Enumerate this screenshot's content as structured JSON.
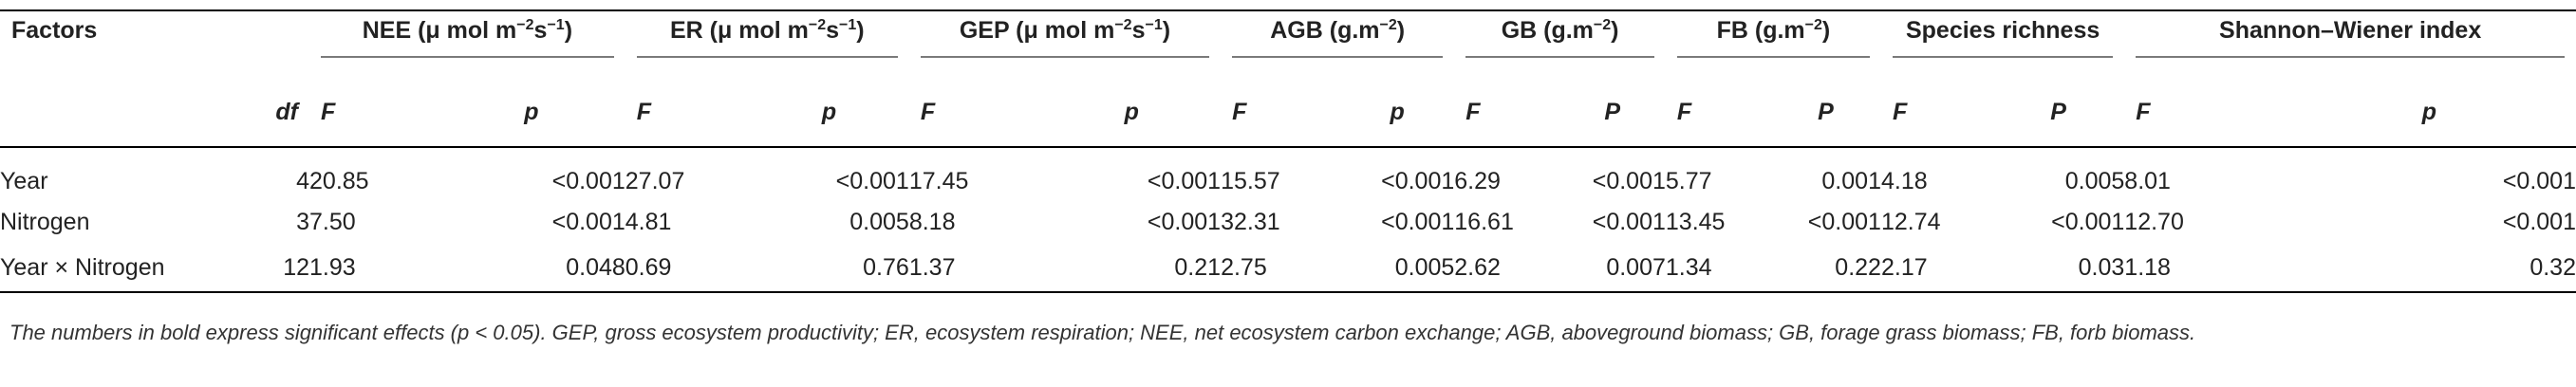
{
  "table": {
    "header_group_row": {
      "factors": "Factors",
      "groups": [
        {
          "label": "NEE (μ mol m",
          "sup1": "−2",
          "mid": "s",
          "sup2": "−1",
          "end": ")"
        },
        {
          "label": "ER (μ mol m",
          "sup1": "−2",
          "mid": "s",
          "sup2": "−1",
          "end": ")"
        },
        {
          "label": "GEP (μ mol m",
          "sup1": "−2",
          "mid": "s",
          "sup2": "−1",
          "end": ")"
        },
        {
          "label": "AGB (g.m",
          "sup1": "−2",
          "mid": "",
          "sup2": "",
          "end": ")"
        },
        {
          "label": "GB (g.m",
          "sup1": "−2",
          "mid": "",
          "sup2": "",
          "end": ")"
        },
        {
          "label": "FB (g.m",
          "sup1": "−2",
          "mid": "",
          "sup2": "",
          "end": ")"
        },
        {
          "label": "Species richness",
          "sup1": "",
          "mid": "",
          "sup2": "",
          "end": ""
        },
        {
          "label": "Shannon–Wiener index",
          "sup1": "",
          "mid": "",
          "sup2": "",
          "end": ""
        }
      ]
    },
    "header_sub_row": {
      "df": "df",
      "cols": [
        "F",
        "p",
        "F",
        "p",
        "F",
        "p",
        "F",
        "p",
        "F",
        "P",
        "F",
        "P",
        "F",
        "P",
        "F",
        "p"
      ]
    },
    "rows": [
      {
        "factor": "Year",
        "df": "4",
        "cells": [
          {
            "v": "20.85",
            "b": false
          },
          {
            "v": "<0.001",
            "b": true
          },
          {
            "v": "27.07",
            "b": false
          },
          {
            "v": "<0.001",
            "b": true
          },
          {
            "v": "17.45",
            "b": false
          },
          {
            "v": "<0.001",
            "b": true
          },
          {
            "v": "15.57",
            "b": false
          },
          {
            "v": "<0.001",
            "b": true
          },
          {
            "v": "6.29",
            "b": false
          },
          {
            "v": "<0.001",
            "b": true
          },
          {
            "v": "5.77",
            "b": false
          },
          {
            "v": "0.001",
            "b": true
          },
          {
            "v": "4.18",
            "b": false
          },
          {
            "v": "0.005",
            "b": true
          },
          {
            "v": "8.01",
            "b": false
          },
          {
            "v": "<0.001",
            "b": true
          }
        ]
      },
      {
        "factor": "Nitrogen",
        "df": "3",
        "cells": [
          {
            "v": "7.50",
            "b": false
          },
          {
            "v": "<0.001",
            "b": true
          },
          {
            "v": "4.81",
            "b": false
          },
          {
            "v": "0.005",
            "b": true
          },
          {
            "v": "8.18",
            "b": false
          },
          {
            "v": "<0.001",
            "b": true
          },
          {
            "v": "32.31",
            "b": false
          },
          {
            "v": "<0.001",
            "b": true
          },
          {
            "v": "16.61",
            "b": false
          },
          {
            "v": "<0.001",
            "b": true
          },
          {
            "v": "13.45",
            "b": false
          },
          {
            "v": "<0.001",
            "b": true
          },
          {
            "v": "12.74",
            "b": false
          },
          {
            "v": "<0.001",
            "b": true
          },
          {
            "v": "12.70",
            "b": false
          },
          {
            "v": "<0.001",
            "b": true
          }
        ]
      },
      {
        "factor": "Year × Nitrogen",
        "df": "12",
        "cells": [
          {
            "v": "1.93",
            "b": false
          },
          {
            "v": "0.048",
            "b": true
          },
          {
            "v": "0.69",
            "b": false
          },
          {
            "v": "0.76",
            "b": false
          },
          {
            "v": "1.37",
            "b": false
          },
          {
            "v": "0.21",
            "b": false
          },
          {
            "v": "2.75",
            "b": false
          },
          {
            "v": "0.005",
            "b": true
          },
          {
            "v": "2.62",
            "b": false
          },
          {
            "v": "0.007",
            "b": true
          },
          {
            "v": "1.34",
            "b": false
          },
          {
            "v": "0.22",
            "b": false
          },
          {
            "v": "2.17",
            "b": false
          },
          {
            "v": "0.03",
            "b": true
          },
          {
            "v": "1.18",
            "b": false
          },
          {
            "v": "0.32",
            "b": false
          }
        ]
      }
    ]
  },
  "footnote": "The numbers in bold express significant effects (p < 0.05). GEP, gross ecosystem productivity; ER, ecosystem respiration; NEE, net ecosystem carbon exchange; AGB, aboveground biomass; GB, forage grass biomass; FB, forb biomass."
}
